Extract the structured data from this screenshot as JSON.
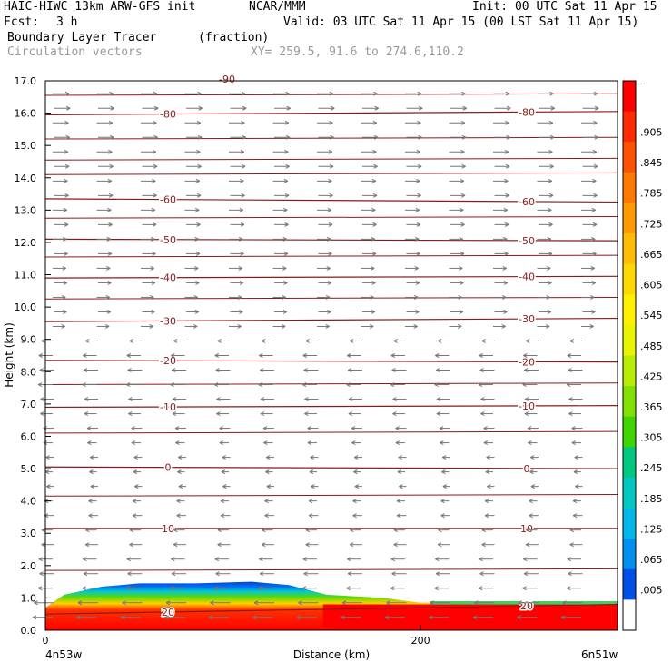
{
  "header": {
    "model": "HAIC-HIWC 13km ARW-GFS init",
    "org": "NCAR/MMM",
    "init": "Init: 00 UTC Sat 11 Apr 15",
    "fcst_label": "Fcst:",
    "fcst_value": "3 h",
    "valid": "Valid: 03 UTC Sat 11 Apr 15 (00 LST Sat 11 Apr 15)",
    "field": "Boundary Layer Tracer",
    "units": "(fraction)",
    "overlay": "Circulation vectors",
    "xy": "XY= 259.5, 91.6 to 274.6,110.2"
  },
  "chart_data": {
    "type": "heatmap",
    "ylabel": "Height (km)",
    "xlabel": "Distance (km)",
    "ylim": [
      0,
      17
    ],
    "xlim": [
      0,
      305
    ],
    "yticks": [
      "0.0",
      "1.0",
      "2.0",
      "3.0",
      "4.0",
      "5.0",
      "6.0",
      "7.0",
      "8.0",
      "9.0",
      "10.0",
      "11.0",
      "12.0",
      "13.0",
      "14.0",
      "15.0",
      "16.0",
      "17.0"
    ],
    "xticks": [
      {
        "value": 0,
        "label": "0"
      },
      {
        "value": 200,
        "label": "200"
      }
    ],
    "endpoint_labels": {
      "left": "4n53w",
      "right": "6n51w"
    },
    "colorbar": {
      "labels": [
        "–",
        ".905",
        ".845",
        ".785",
        ".725",
        ".665",
        ".605",
        ".545",
        ".485",
        ".425",
        ".365",
        ".305",
        ".245",
        ".185",
        ".125",
        ".065",
        ".005"
      ],
      "colors": [
        "#ff0000",
        "#ff2a00",
        "#ff5200",
        "#ff7800",
        "#ff9a00",
        "#ffbc00",
        "#ffd800",
        "#fff000",
        "#e8f400",
        "#b8ec00",
        "#80e000",
        "#40d400",
        "#00c880",
        "#00c8c0",
        "#00b8e8",
        "#0090f0",
        "#0050e8",
        "#ffffff"
      ]
    },
    "temperature_contours": [
      {
        "label": "-80",
        "heights_left_right": [
          15.95,
          16.05
        ]
      },
      {
        "label": "-60",
        "heights_left_right": [
          13.35,
          13.25
        ]
      },
      {
        "label": "-50",
        "heights_left_right": [
          12.1,
          12.05
        ]
      },
      {
        "label": "-40",
        "heights_left_right": [
          10.9,
          10.95
        ]
      },
      {
        "label": "-30",
        "heights_left_right": [
          9.55,
          9.65
        ]
      },
      {
        "label": "-20",
        "heights_left_right": [
          8.35,
          8.3
        ]
      },
      {
        "label": "-10",
        "heights_left_right": [
          6.9,
          6.95
        ]
      },
      {
        "label": "0",
        "heights_left_right": [
          5.05,
          5.0
        ]
      },
      {
        "label": "10",
        "heights_left_right": [
          3.15,
          3.15
        ]
      },
      {
        "label": "20",
        "heights_left_right": [
          0.5,
          0.8
        ]
      }
    ],
    "extra_contour_heights": [
      16.55,
      15.2,
      14.55,
      14.1,
      12.75,
      11.55,
      10.25,
      7.6,
      6.1,
      4.15,
      1.85
    ],
    "top_label": "-90",
    "tracer_top_km": [
      [
        0,
        0.7
      ],
      [
        10,
        1.1
      ],
      [
        30,
        1.35
      ],
      [
        50,
        1.45
      ],
      [
        80,
        1.45
      ],
      [
        110,
        1.5
      ],
      [
        130,
        1.4
      ],
      [
        150,
        1.1
      ],
      [
        180,
        1.0
      ],
      [
        200,
        0.85
      ],
      [
        230,
        0.9
      ],
      [
        305,
        0.9
      ]
    ]
  }
}
